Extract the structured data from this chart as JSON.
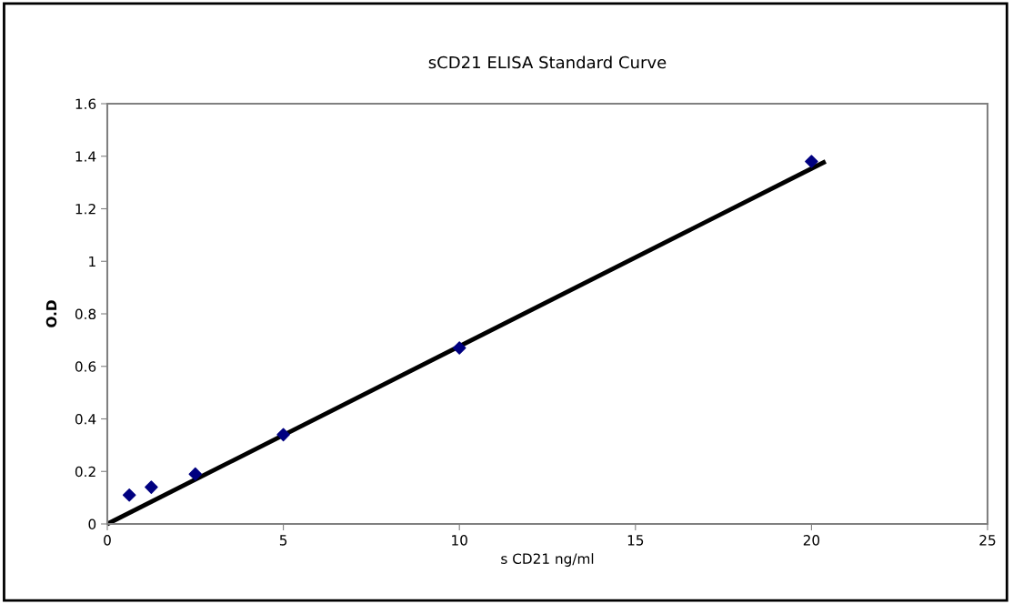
{
  "chart_data": {
    "type": "scatter",
    "title": "sCD21 ELISA Standard Curve",
    "xlabel": "s CD21 ng/ml",
    "ylabel": "O.D",
    "series": [
      {
        "color": "#000080",
        "marker": "diamond",
        "x": [
          0.625,
          1.25,
          2.5,
          5,
          10,
          20
        ],
        "values": [
          0.11,
          0.14,
          0.19,
          0.34,
          0.67,
          1.38
        ]
      },
      {
        "type": "line",
        "color": "#000000",
        "marker": "none",
        "line_style": "solid",
        "x": [
          0,
          20.4
        ],
        "values": [
          0,
          1.38
        ]
      }
    ],
    "xlim": [
      0,
      25
    ],
    "xticks": [
      0,
      5,
      10,
      15,
      20,
      25
    ],
    "ylim": [
      0,
      1.6
    ],
    "yticks": [
      0,
      0.2,
      0.4,
      0.6,
      0.8,
      1,
      1.2,
      1.4,
      1.6
    ],
    "grid": false,
    "legend": false
  }
}
